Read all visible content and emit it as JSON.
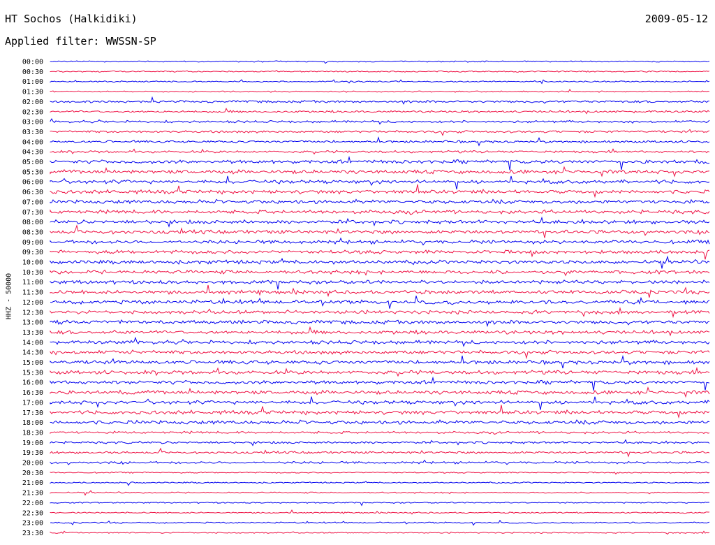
{
  "header": {
    "station": "HT Sochos (Halkidiki)",
    "date": "2009-05-12",
    "filter": "Applied filter: WWSSN-SP"
  },
  "chart_data": {
    "type": "line",
    "title": "HT Sochos (Halkidiki)",
    "subtitle": "Applied filter: WWSSN-SP",
    "ylabel": "HHZ - 50000",
    "xlabel": "",
    "trace_colors": [
      "#0000ee",
      "#ee1144"
    ],
    "rows": [
      "00:00",
      "00:30",
      "01:00",
      "01:30",
      "02:00",
      "02:30",
      "03:00",
      "03:30",
      "04:00",
      "04:30",
      "05:00",
      "05:30",
      "06:00",
      "06:30",
      "07:00",
      "07:30",
      "08:00",
      "08:30",
      "09:00",
      "09:30",
      "10:00",
      "10:30",
      "11:00",
      "11:30",
      "12:00",
      "12:30",
      "13:00",
      "13:30",
      "14:00",
      "14:30",
      "15:00",
      "15:30",
      "16:00",
      "16:30",
      "17:00",
      "17:30",
      "18:00",
      "18:30",
      "19:00",
      "19:30",
      "20:00",
      "20:30",
      "21:00",
      "21:30",
      "22:00",
      "22:30",
      "23:00",
      "23:30"
    ]
  }
}
